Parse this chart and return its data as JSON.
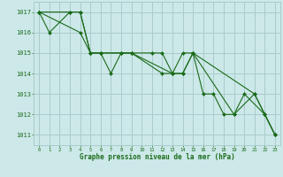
{
  "bg_color": "#cce8e8",
  "grid_color": "#aacccc",
  "line_color": "#1a6b1a",
  "marker_color": "#1a6b1a",
  "xlabel": "Graphe pression niveau de la mer (hPa)",
  "xlim": [
    -0.5,
    23.5
  ],
  "ylim": [
    1010.5,
    1017.5
  ],
  "yticks": [
    1011,
    1012,
    1013,
    1014,
    1015,
    1016,
    1017
  ],
  "xticks": [
    0,
    1,
    2,
    3,
    4,
    5,
    6,
    7,
    8,
    9,
    10,
    11,
    12,
    13,
    14,
    15,
    16,
    17,
    18,
    19,
    20,
    21,
    22,
    23
  ],
  "series": [
    {
      "x": [
        0,
        1,
        3,
        4,
        5,
        6,
        7,
        8,
        9,
        11,
        12,
        13,
        14,
        15,
        16,
        17,
        18,
        19,
        20,
        22,
        23
      ],
      "y": [
        1017,
        1016,
        1017,
        1017,
        1015,
        1015,
        1014,
        1015,
        1015,
        1015,
        1015,
        1014,
        1015,
        1015,
        1013,
        1013,
        1012,
        1012,
        1013,
        1012,
        1011
      ]
    },
    {
      "x": [
        0,
        3,
        4,
        5,
        6,
        8,
        9,
        12,
        13,
        14,
        15,
        19,
        21,
        22,
        23
      ],
      "y": [
        1017,
        1017,
        1017,
        1015,
        1015,
        1015,
        1015,
        1014,
        1014,
        1014,
        1015,
        1012,
        1013,
        1012,
        1011
      ]
    },
    {
      "x": [
        0,
        4,
        5,
        6,
        9,
        13,
        14,
        15,
        21,
        22,
        23
      ],
      "y": [
        1017,
        1016,
        1015,
        1015,
        1015,
        1014,
        1014,
        1015,
        1013,
        1012,
        1011
      ]
    }
  ]
}
